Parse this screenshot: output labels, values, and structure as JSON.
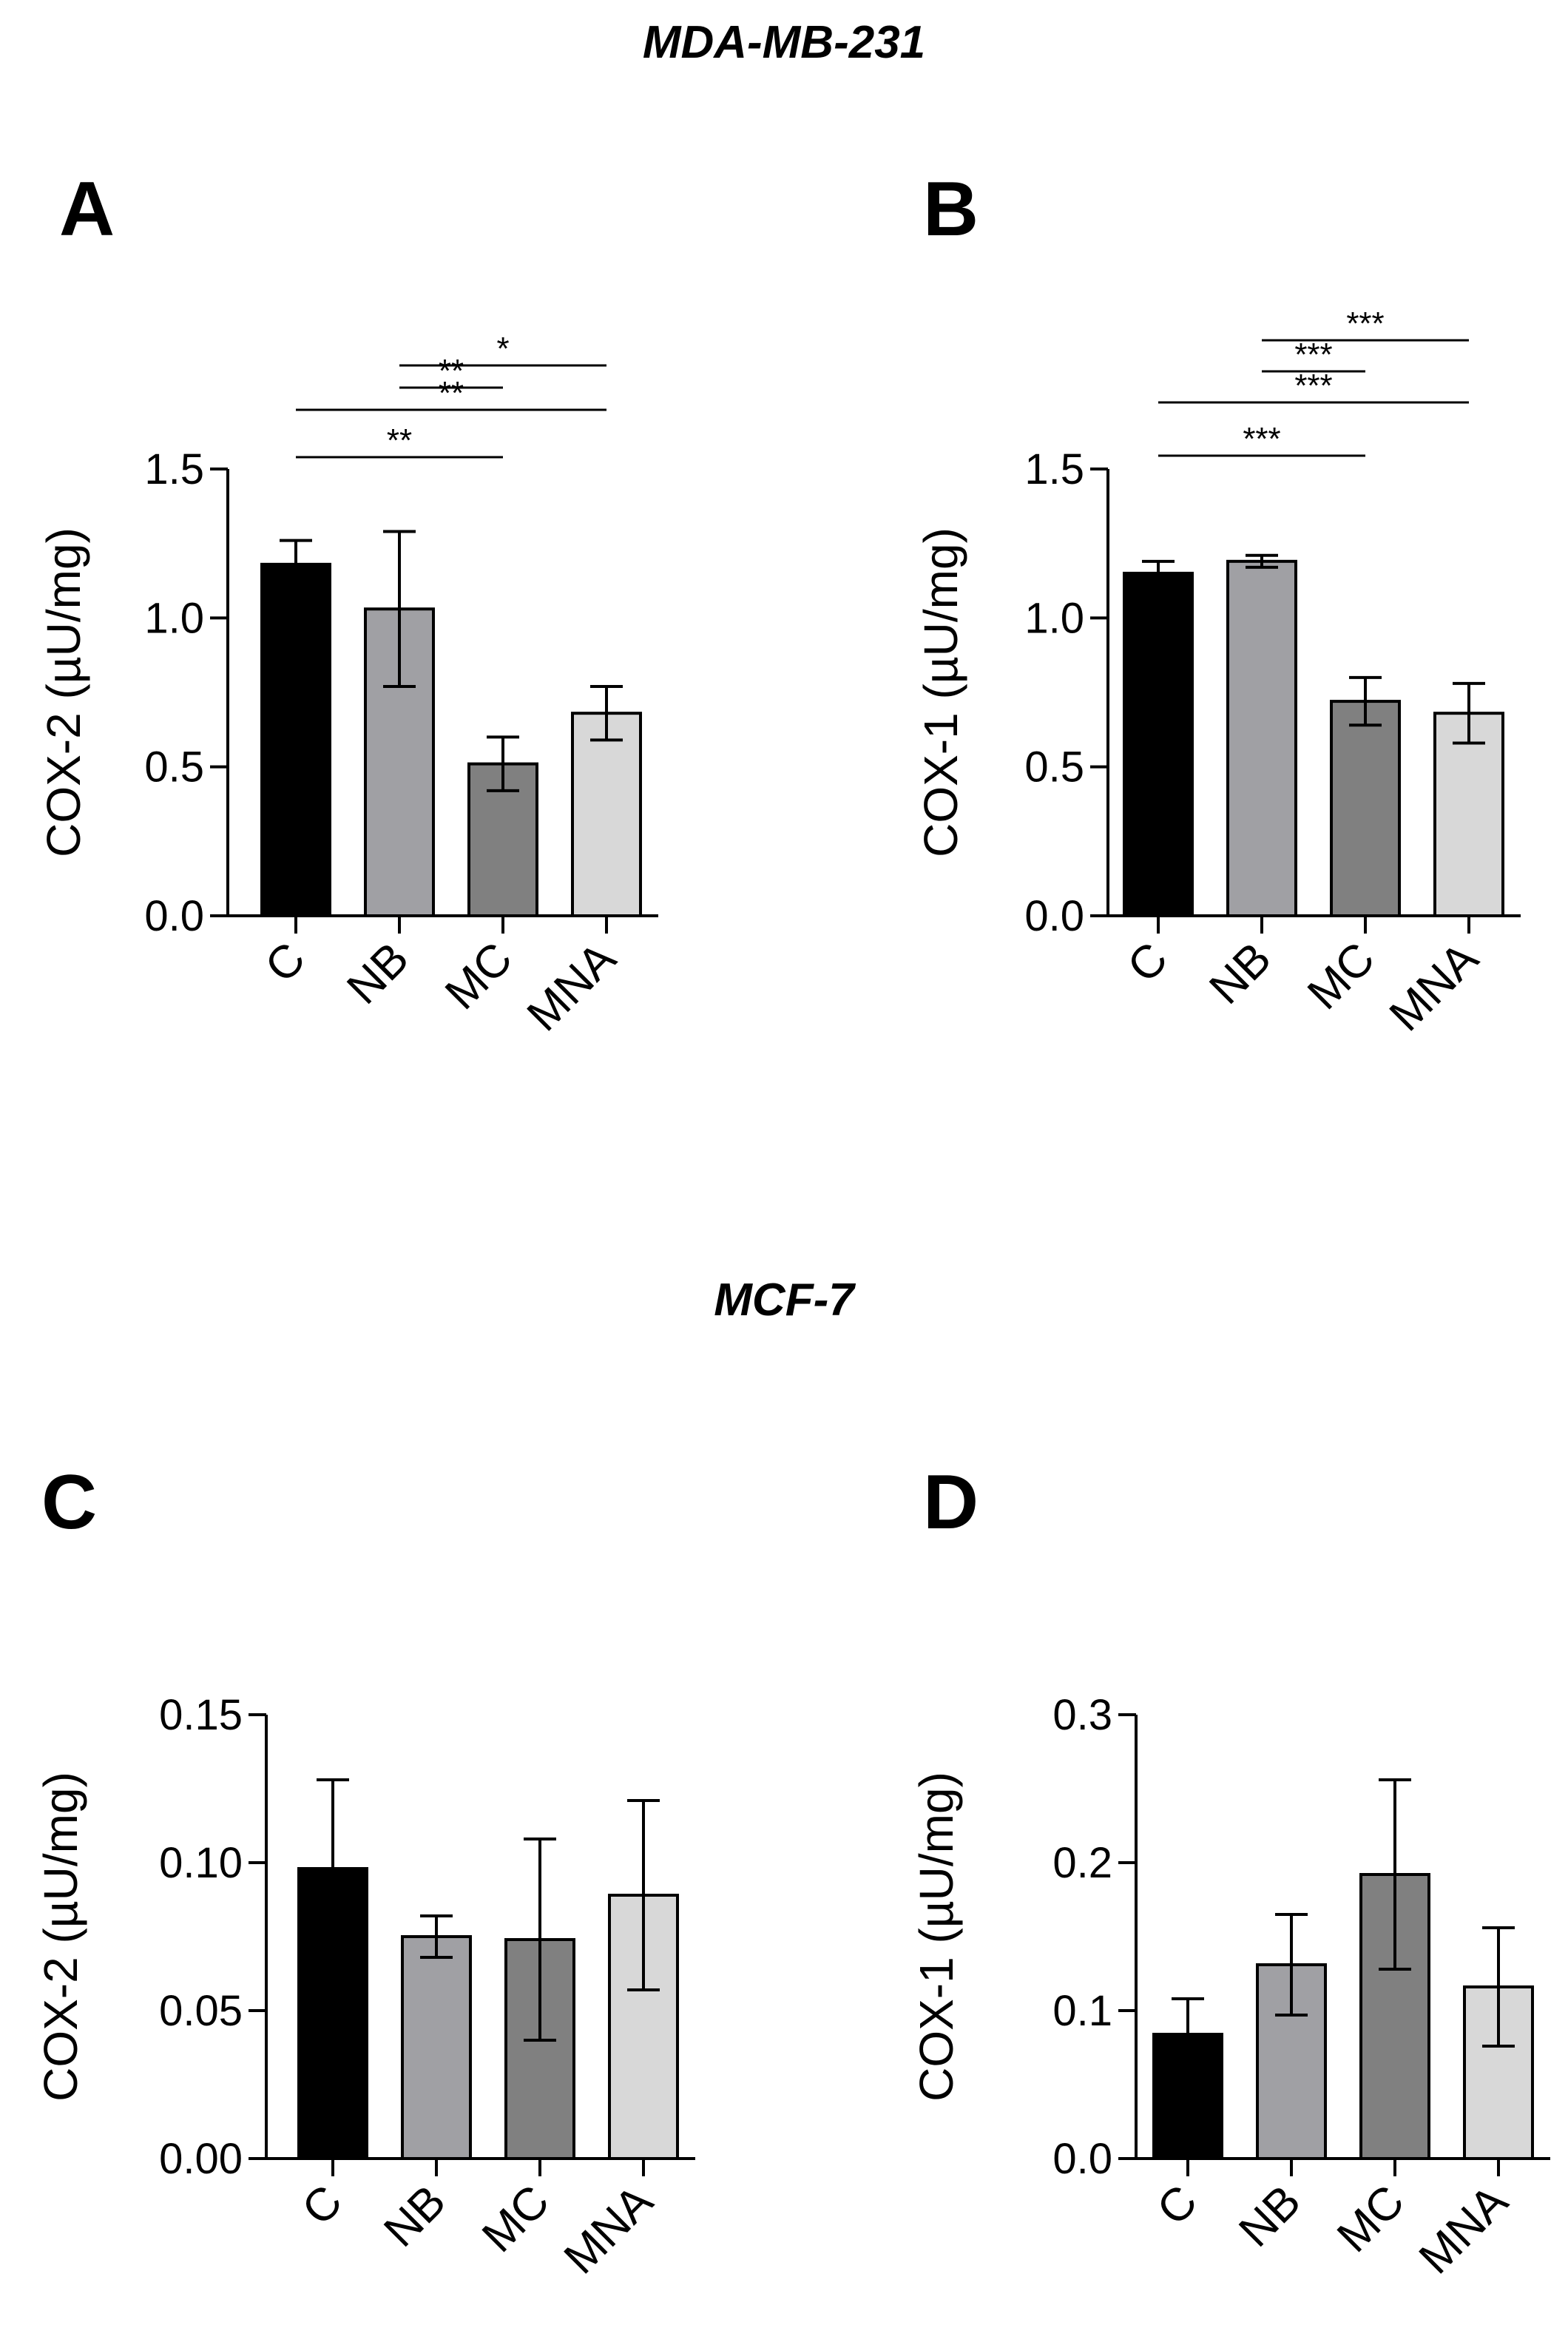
{
  "section_titles": {
    "top": "MDA-MB-231",
    "bottom": "MCF-7"
  },
  "colors": {
    "C": "#000000",
    "NB": "#a0a0a4",
    "MC": "#808080",
    "MNA": "#d8d8d8",
    "axis": "#000000"
  },
  "chart_data": [
    {
      "panel": "A",
      "type": "bar",
      "ylabel": "COX-2 (µU/mg)",
      "categories": [
        "C",
        "NB",
        "MC",
        "MNA"
      ],
      "values": [
        1.18,
        1.03,
        0.51,
        0.68
      ],
      "errors": [
        0.08,
        0.26,
        0.09,
        0.09
      ],
      "ylim": [
        0,
        1.5
      ],
      "yticks": [
        "0.0",
        "0.5",
        "1.0",
        "1.5"
      ],
      "significance": [
        {
          "from": 1,
          "to": 3,
          "label": "*"
        },
        {
          "from": 1,
          "to": 2,
          "label": "**"
        },
        {
          "from": 0,
          "to": 3,
          "label": "**"
        },
        {
          "from": 0,
          "to": 2,
          "label": "**"
        }
      ]
    },
    {
      "panel": "B",
      "type": "bar",
      "ylabel": "COX-1 (µU/mg)",
      "categories": [
        "C",
        "NB",
        "MC",
        "MNA"
      ],
      "values": [
        1.15,
        1.19,
        0.72,
        0.68
      ],
      "errors": [
        0.04,
        0.02,
        0.08,
        0.1
      ],
      "ylim": [
        0,
        1.5
      ],
      "yticks": [
        "0.0",
        "0.5",
        "1.0",
        "1.5"
      ],
      "significance": [
        {
          "from": 1,
          "to": 3,
          "label": "***"
        },
        {
          "from": 1,
          "to": 2,
          "label": "***"
        },
        {
          "from": 0,
          "to": 3,
          "label": "***"
        },
        {
          "from": 0,
          "to": 2,
          "label": "***"
        }
      ]
    },
    {
      "panel": "C",
      "type": "bar",
      "ylabel": "COX-2 (µU/mg)",
      "categories": [
        "C",
        "NB",
        "MC",
        "MNA"
      ],
      "values": [
        0.098,
        0.075,
        0.074,
        0.089
      ],
      "errors": [
        0.03,
        0.007,
        0.034,
        0.032
      ],
      "ylim": [
        0,
        0.15
      ],
      "yticks": [
        "0.00",
        "0.05",
        "0.10",
        "0.15"
      ],
      "significance": []
    },
    {
      "panel": "D",
      "type": "bar",
      "ylabel": "COX-1 (µU/mg)",
      "categories": [
        "C",
        "NB",
        "MC",
        "MNA"
      ],
      "values": [
        0.084,
        0.131,
        0.192,
        0.116
      ],
      "errors": [
        0.024,
        0.034,
        0.064,
        0.04
      ],
      "ylim": [
        0,
        0.3
      ],
      "yticks": [
        "0.0",
        "0.1",
        "0.2",
        "0.3"
      ],
      "significance": []
    }
  ]
}
